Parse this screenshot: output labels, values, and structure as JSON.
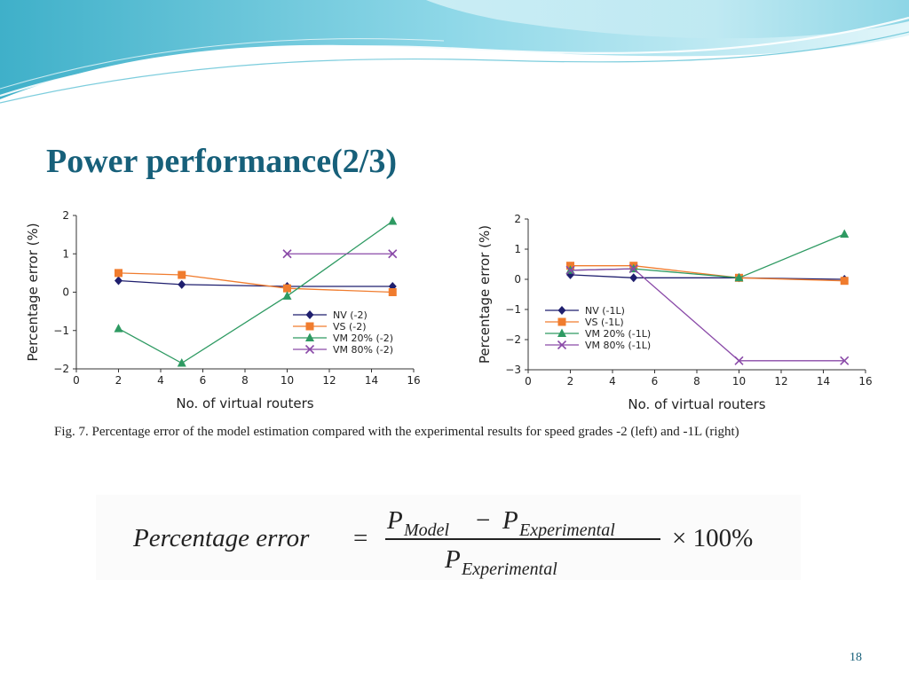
{
  "slide": {
    "title": "Power performance(2/3)",
    "page_number": "18",
    "caption": "Fig. 7.    Percentage error of the model estimation compared with the experimental results for speed grades -2 (left) and -1L (right)",
    "formula": {
      "lhs": "Percentage error",
      "equals": "=",
      "numerator_a": "P",
      "numerator_a_sub": "Model",
      "minus": "−",
      "numerator_b": "P",
      "numerator_b_sub": "Experimental",
      "denominator": "P",
      "denominator_sub": "Experimental",
      "multiplier": "× 100%"
    },
    "theme_colors": {
      "title": "#17607a",
      "wave_light": "#bfe8f0",
      "wave_dark": "#49b8cf"
    }
  },
  "chart_data": [
    {
      "type": "line",
      "xlabel": "No. of virtual routers",
      "ylabel": "Percentage error (%)",
      "xlim": [
        0,
        16
      ],
      "ylim": [
        -2,
        2
      ],
      "xticks": [
        "0",
        "2",
        "4",
        "6",
        "8",
        "10",
        "12",
        "14",
        "16"
      ],
      "yticks": [
        "−2",
        "−1",
        "0",
        "1",
        "2"
      ],
      "legend_position": "bottom-right",
      "grid": false,
      "x": [
        2,
        5,
        10,
        15
      ],
      "series": [
        {
          "name": "NV (-2)",
          "marker": "diamond",
          "color": "#1f1f6e",
          "values": [
            0.3,
            0.2,
            0.15,
            0.15
          ]
        },
        {
          "name": "VS (-2)",
          "marker": "square",
          "color": "#f07c2e",
          "values": [
            0.5,
            0.45,
            0.1,
            0.0
          ]
        },
        {
          "name": "VM 20% (-2)",
          "marker": "triangle",
          "color": "#2e9a62",
          "values": [
            -0.95,
            -1.85,
            -0.1,
            1.85
          ]
        },
        {
          "name": "VM 80% (-2)",
          "marker": "x",
          "color": "#8a4aa8",
          "values": [
            null,
            null,
            1.0,
            1.0
          ]
        }
      ]
    },
    {
      "type": "line",
      "xlabel": "No. of virtual routers",
      "ylabel": "Percentage error (%)",
      "xlim": [
        0,
        16
      ],
      "ylim": [
        -3,
        2
      ],
      "xticks": [
        "0",
        "2",
        "4",
        "6",
        "8",
        "10",
        "12",
        "14",
        "16"
      ],
      "yticks": [
        "−3",
        "−2",
        "−1",
        "0",
        "1",
        "2"
      ],
      "legend_position": "center-left",
      "grid": false,
      "x": [
        2,
        5,
        10,
        15
      ],
      "series": [
        {
          "name": "NV (-1L)",
          "marker": "diamond",
          "color": "#1f1f6e",
          "values": [
            0.15,
            0.05,
            0.05,
            0.0
          ]
        },
        {
          "name": "VS (-1L)",
          "marker": "square",
          "color": "#f07c2e",
          "values": [
            0.45,
            0.45,
            0.05,
            -0.05
          ]
        },
        {
          "name": "VM 20% (-1L)",
          "marker": "triangle",
          "color": "#2e9a62",
          "values": [
            0.3,
            0.35,
            0.05,
            1.5
          ]
        },
        {
          "name": "VM 80% (-1L)",
          "marker": "x",
          "color": "#8a4aa8",
          "values": [
            0.3,
            0.35,
            -2.7,
            -2.7
          ]
        }
      ]
    }
  ]
}
